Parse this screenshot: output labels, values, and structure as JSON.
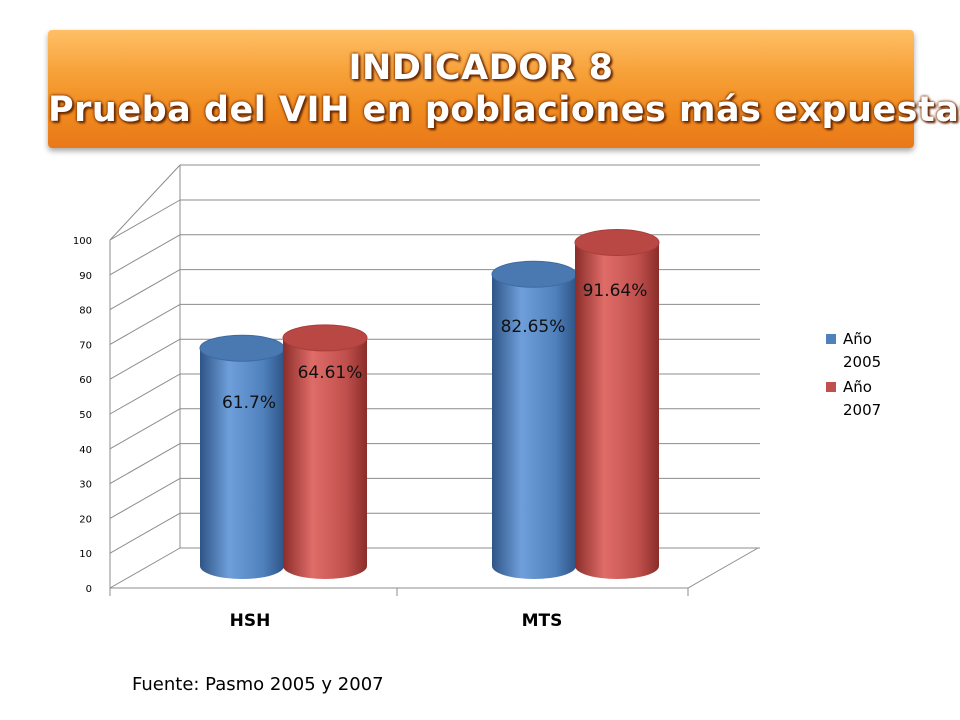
{
  "title": {
    "line1": "INDICADOR 8",
    "line2": "Prueba del VIH en poblaciones más expuestas"
  },
  "source": "Fuente: Pasmo 2005 y 2007",
  "colors": {
    "series_2005": "#4f81bd",
    "series_2007": "#c0504d",
    "banner": "#f7941e"
  },
  "chart_data": {
    "type": "bar",
    "categories": [
      "HSH",
      "MTS"
    ],
    "series": [
      {
        "name": "Año 2005",
        "values": [
          61.7,
          82.65
        ],
        "labels": [
          "61.7%",
          "82.65%"
        ]
      },
      {
        "name": "Año 2007",
        "values": [
          64.61,
          91.64
        ],
        "labels": [
          "64.61%",
          "91.64%"
        ]
      }
    ],
    "ylim": [
      0,
      100
    ],
    "yticks": [
      0,
      10,
      20,
      30,
      40,
      50,
      60,
      70,
      80,
      90,
      100
    ],
    "grid": true,
    "legend": "right",
    "style": "3d-cylinder"
  }
}
